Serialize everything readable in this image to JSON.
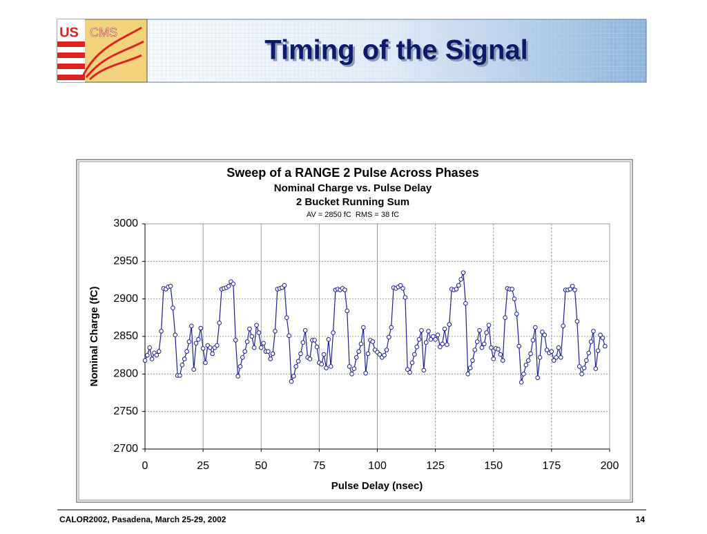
{
  "slide": {
    "title": "Timing of the Signal",
    "logo": [
      "US",
      "CMS"
    ],
    "footer": "CALOR2002, Pasadena, March 25-29, 2002",
    "page_number": "14"
  },
  "chart_data": {
    "type": "line",
    "title": "Sweep of a RANGE 2 Pulse Across Phases",
    "subtitle": [
      "Nominal Charge vs. Pulse Delay",
      "2 Bucket Running Sum"
    ],
    "annotation": "AV = 2850 fC  RMS = 38 fC",
    "x_label": "Pulse Delay (nsec)",
    "y_label": "Nominal Charge (fC)",
    "xlim": [
      0,
      200
    ],
    "xticks": [
      0,
      25,
      50,
      75,
      100,
      125,
      150,
      175,
      200
    ],
    "ylim": [
      2700,
      3000
    ],
    "yticks": [
      2700,
      2750,
      2800,
      2850,
      2900,
      2950,
      3000
    ],
    "grid": true,
    "x": [
      0,
      1,
      2,
      3,
      4,
      5,
      6,
      7,
      8,
      9,
      10,
      11,
      12,
      13,
      14,
      15,
      16,
      17,
      18,
      19,
      20,
      21,
      22,
      23,
      24,
      25,
      26,
      27,
      28,
      29,
      30,
      31,
      32,
      33,
      34,
      35,
      36,
      37,
      38,
      39,
      40,
      41,
      42,
      43,
      44,
      45,
      46,
      47,
      48,
      49,
      50,
      51,
      52,
      53,
      54,
      55,
      56,
      57,
      58,
      59,
      60,
      61,
      62,
      63,
      64,
      65,
      66,
      67,
      68,
      69,
      70,
      71,
      72,
      73,
      74,
      75,
      76,
      77,
      78,
      79,
      80,
      81,
      82,
      83,
      84,
      85,
      86,
      87,
      88,
      89,
      90,
      91,
      92,
      93,
      94,
      95,
      96,
      97,
      98,
      99,
      100,
      101,
      102,
      103,
      104,
      105,
      106,
      107,
      108,
      109,
      110,
      111,
      112,
      113,
      114,
      115,
      116,
      117,
      118,
      119,
      120,
      121,
      122,
      123,
      124,
      125,
      126,
      127,
      128,
      129,
      130,
      131,
      132,
      133,
      134,
      135,
      136,
      137,
      138,
      139,
      140,
      141,
      142,
      143,
      144,
      145,
      146,
      147,
      148,
      149,
      150,
      151,
      152,
      153,
      154,
      155,
      156,
      157,
      158,
      159,
      160,
      161,
      162,
      163,
      164,
      165,
      166,
      167,
      168,
      169,
      170,
      171,
      172,
      173,
      174,
      175,
      176,
      177,
      178,
      179,
      180,
      181,
      182,
      183,
      184,
      185,
      186,
      187,
      188,
      189,
      190,
      191,
      192,
      193,
      194,
      195,
      196,
      197,
      198
    ],
    "series": [
      {
        "name": "Nominal Charge",
        "color": "#1a1f8c",
        "values": [
          2818,
          2825,
          2835,
          2820,
          2828,
          2825,
          2830,
          2857,
          2914,
          2913,
          2916,
          2917,
          2888,
          2852,
          2798,
          2798,
          2812,
          2820,
          2830,
          2843,
          2864,
          2806,
          2841,
          2846,
          2861,
          2834,
          2815,
          2838,
          2835,
          2827,
          2835,
          2838,
          2868,
          2913,
          2914,
          2915,
          2917,
          2923,
          2920,
          2845,
          2797,
          2810,
          2822,
          2830,
          2843,
          2860,
          2850,
          2835,
          2865,
          2855,
          2835,
          2841,
          2830,
          2830,
          2820,
          2827,
          2857,
          2913,
          2914,
          2915,
          2918,
          2875,
          2851,
          2790,
          2797,
          2810,
          2817,
          2827,
          2842,
          2858,
          2822,
          2820,
          2845,
          2845,
          2836,
          2815,
          2813,
          2826,
          2808,
          2846,
          2810,
          2855,
          2912,
          2913,
          2912,
          2914,
          2912,
          2884,
          2810,
          2800,
          2807,
          2822,
          2830,
          2840,
          2862,
          2801,
          2827,
          2845,
          2843,
          2832,
          2829,
          2826,
          2822,
          2825,
          2832,
          2849,
          2862,
          2915,
          2914,
          2916,
          2918,
          2914,
          2902,
          2806,
          2802,
          2815,
          2826,
          2836,
          2846,
          2858,
          2805,
          2842,
          2857,
          2846,
          2850,
          2846,
          2852,
          2836,
          2840,
          2860,
          2839,
          2866,
          2913,
          2912,
          2913,
          2918,
          2926,
          2935,
          2894,
          2800,
          2808,
          2818,
          2832,
          2843,
          2858,
          2835,
          2840,
          2855,
          2865,
          2835,
          2820,
          2834,
          2833,
          2826,
          2818,
          2875,
          2914,
          2913,
          2913,
          2900,
          2880,
          2837,
          2789,
          2800,
          2812,
          2818,
          2827,
          2845,
          2862,
          2795,
          2822,
          2856,
          2852,
          2832,
          2828,
          2830,
          2818,
          2822,
          2835,
          2822,
          2864,
          2912,
          2912,
          2913,
          2917,
          2912,
          2870,
          2810,
          2800,
          2808,
          2818,
          2828,
          2843,
          2857,
          2807,
          2831,
          2852,
          2848,
          2837
        ]
      }
    ]
  }
}
